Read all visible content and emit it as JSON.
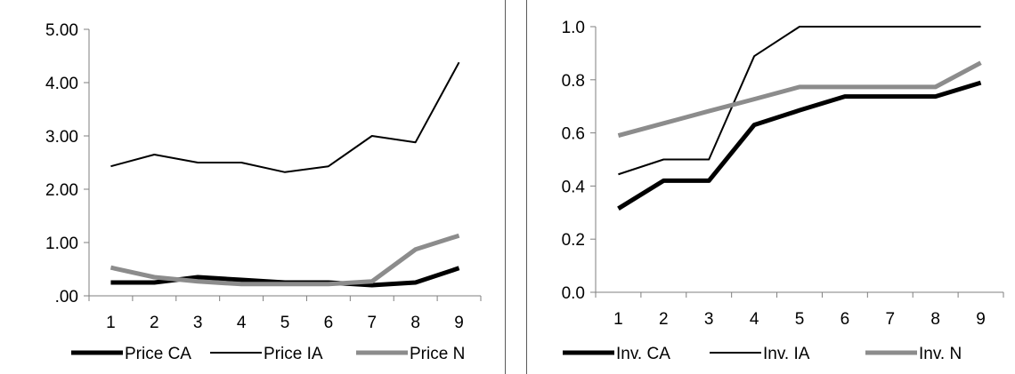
{
  "chart_data": [
    {
      "type": "line",
      "x": [
        1,
        2,
        3,
        4,
        5,
        6,
        7,
        8,
        9
      ],
      "ylim": [
        0,
        5
      ],
      "yticks": [
        0,
        1,
        2,
        3,
        4,
        5
      ],
      "ytick_labels": [
        ".00",
        "1.00",
        "2.00",
        "3.00",
        "4.00",
        "5.00"
      ],
      "xtick_labels": [
        "1",
        "2",
        "3",
        "4",
        "5",
        "6",
        "7",
        "8",
        "9"
      ],
      "grid": false,
      "legend_position": "bottom",
      "series": [
        {
          "name": "Price CA",
          "values": [
            0.25,
            0.25,
            0.35,
            0.3,
            0.25,
            0.25,
            0.2,
            0.25,
            0.52
          ],
          "color": "#000000",
          "style": "thick"
        },
        {
          "name": "Price IA",
          "values": [
            2.43,
            2.65,
            2.5,
            2.5,
            2.32,
            2.43,
            3.0,
            2.88,
            4.38
          ],
          "color": "#000000",
          "style": "thin"
        },
        {
          "name": "Price N",
          "values": [
            0.53,
            0.35,
            0.27,
            0.22,
            0.22,
            0.22,
            0.27,
            0.87,
            1.13
          ],
          "color": "#8c8c8c",
          "style": "thick"
        }
      ]
    },
    {
      "type": "line",
      "x": [
        1,
        2,
        3,
        4,
        5,
        6,
        7,
        8,
        9
      ],
      "ylim": [
        0,
        1
      ],
      "yticks": [
        0,
        0.2,
        0.4,
        0.6,
        0.8,
        1.0
      ],
      "ytick_labels": [
        "0.0",
        "0.2",
        "0.4",
        "0.6",
        "0.8",
        "1.0"
      ],
      "xtick_labels": [
        "1",
        "2",
        "3",
        "4",
        "5",
        "6",
        "7",
        "8",
        "9"
      ],
      "grid": false,
      "legend_position": "bottom",
      "series": [
        {
          "name": "Inv. CA",
          "values": [
            0.315,
            0.42,
            0.42,
            0.63,
            0.685,
            0.737,
            0.737,
            0.737,
            0.789
          ],
          "color": "#000000",
          "style": "thick"
        },
        {
          "name": "Inv. IA",
          "values": [
            0.444,
            0.5,
            0.5,
            0.889,
            1.0,
            1.0,
            1.0,
            1.0,
            1.0
          ],
          "color": "#000000",
          "style": "thin"
        },
        {
          "name": "Inv. N",
          "values": [
            0.59,
            0.636,
            0.682,
            0.727,
            0.773,
            0.773,
            0.773,
            0.773,
            0.864
          ],
          "color": "#8c8c8c",
          "style": "thick"
        }
      ]
    }
  ]
}
